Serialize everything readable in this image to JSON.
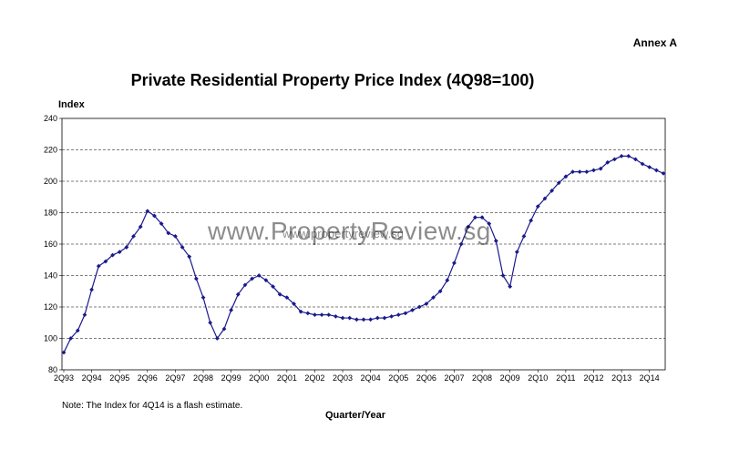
{
  "header": {
    "annex": "Annex A"
  },
  "watermark": {
    "big": "www.PropertyReview.sg",
    "small": "www.propertyreview.sg"
  },
  "note": "Note: The Index for 4Q14 is a flash estimate.",
  "chart_data": {
    "type": "line",
    "title": "Private Residential Property Price Index (4Q98=100)",
    "xlabel": "Quarter/Year",
    "ylabel": "Index",
    "ylim": [
      80,
      240
    ],
    "yticks": [
      80,
      100,
      120,
      140,
      160,
      180,
      200,
      220,
      240
    ],
    "grid": "horizontal dashed",
    "legend": "none",
    "color": "#1a1a8c",
    "x_tick_labels": [
      "2Q93",
      "2Q94",
      "2Q95",
      "2Q96",
      "2Q97",
      "2Q98",
      "2Q99",
      "2Q00",
      "2Q01",
      "2Q02",
      "2Q03",
      "2Q04",
      "2Q05",
      "2Q06",
      "2Q07",
      "2Q08",
      "2Q09",
      "2Q10",
      "2Q11",
      "2Q12",
      "2Q13",
      "2Q14"
    ],
    "x_start": "2Q93",
    "x_end": "4Q14",
    "series": [
      {
        "values": [
          91,
          100,
          105,
          115,
          131,
          146,
          149,
          153,
          155,
          158,
          165,
          171,
          181,
          178,
          173,
          167,
          165,
          158,
          152,
          138,
          126,
          110,
          100,
          106,
          118,
          128,
          134,
          138,
          140,
          137,
          133,
          128,
          126,
          122,
          117,
          116,
          115,
          115,
          115,
          114,
          113,
          113,
          112,
          112,
          112,
          113,
          113,
          114,
          115,
          116,
          118,
          120,
          122,
          126,
          130,
          137,
          148,
          160,
          171,
          177,
          177,
          173,
          162,
          140,
          133,
          155,
          165,
          175,
          184,
          189,
          194,
          199,
          203,
          206,
          206,
          206,
          207,
          208,
          212,
          214,
          216,
          216,
          214,
          211,
          209,
          207,
          205
        ]
      }
    ]
  }
}
